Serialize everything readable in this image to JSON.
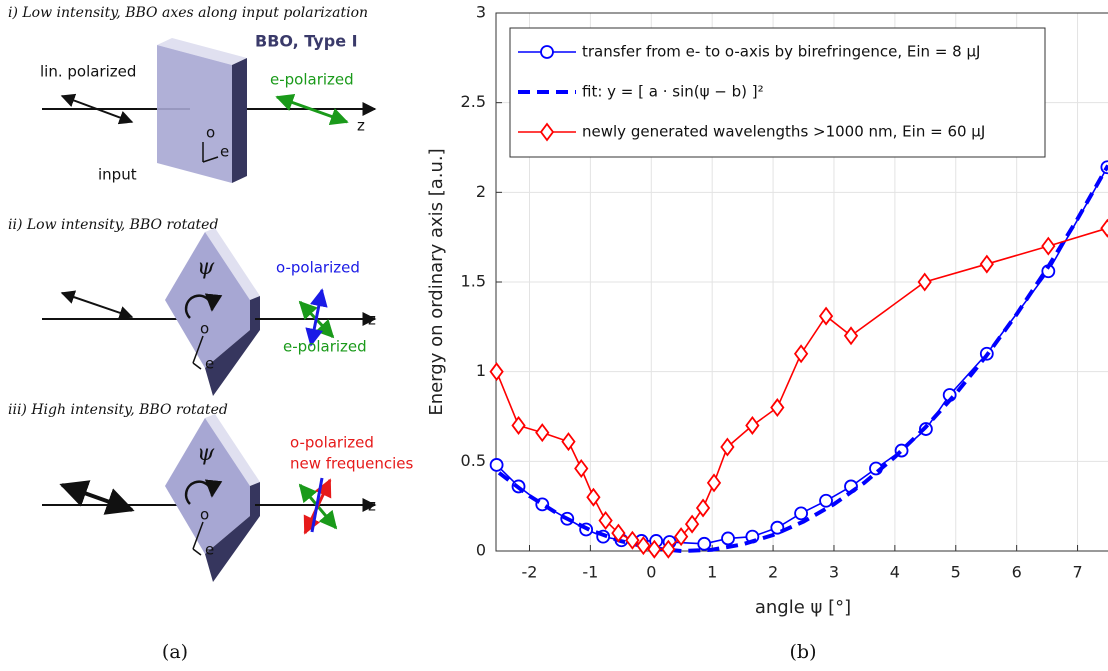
{
  "figure_a": {
    "caption": "(a)",
    "panels": [
      {
        "title": "i) Low intensity, BBO axes along input polarization",
        "crystal": "BBO, Type I",
        "input_polarization": "lin. polarized",
        "output_polarization": "e-polarized",
        "z_axis": "z",
        "o_axis": "o",
        "e_axis": "e",
        "input": "input"
      },
      {
        "title": "ii) Low intensity, BBO rotated",
        "angle": "ψ",
        "output_o": "o-polarized",
        "output_e": "e-polarized",
        "z_axis": "z",
        "o_axis": "o",
        "e_axis": "e"
      },
      {
        "title": "iii) High intensity, BBO rotated",
        "angle": "ψ",
        "output_o": "o-polarized",
        "output_new": "new frequencies",
        "z_axis": "z",
        "o_axis": "o",
        "e_axis": "e"
      }
    ]
  },
  "chart_data": {
    "type": "line",
    "caption": "(b)",
    "xlabel": "angle ψ [°]",
    "ylabel": "Energy on ordinary axis [a.u.]",
    "xlim": [
      -2.55,
      7.5
    ],
    "ylim": [
      0,
      3
    ],
    "xticks": [
      -2,
      -1,
      0,
      1,
      2,
      3,
      4,
      5,
      6,
      7
    ],
    "yticks": [
      0,
      0.5,
      1,
      1.5,
      2,
      2.5,
      3
    ],
    "grid": true,
    "legend": "upper left",
    "series": [
      {
        "name": "transfer from e- to o-axis by birefringence, Ein = 8 µJ",
        "color": "#0000ff",
        "marker": "circle",
        "line_style": "solid",
        "x": [
          -2.54,
          -2.18,
          -1.79,
          -1.38,
          -1.07,
          -0.79,
          -0.49,
          -0.16,
          0.08,
          0.3,
          0.87,
          1.26,
          1.66,
          2.07,
          2.46,
          2.87,
          3.28,
          3.69,
          4.11,
          4.51,
          4.9,
          5.51,
          6.52,
          7.49
        ],
        "values": [
          0.48,
          0.36,
          0.26,
          0.18,
          0.12,
          0.08,
          0.06,
          0.056,
          0.056,
          0.05,
          0.04,
          0.07,
          0.08,
          0.13,
          0.21,
          0.28,
          0.36,
          0.46,
          0.56,
          0.68,
          0.87,
          1.1,
          1.56,
          2.14
        ]
      },
      {
        "name": "fit: y = [ a · sin(ψ − b) ]²",
        "color": "#0000ff",
        "marker": "none",
        "line_style": "dashed",
        "x": [
          -2.5,
          -2,
          -1.5,
          -1,
          -0.5,
          0,
          0.5,
          1,
          1.5,
          2,
          2.5,
          3,
          3.5,
          4,
          4.5,
          5,
          5.5,
          6,
          6.5,
          7,
          7.5
        ],
        "values": [
          0.436,
          0.307,
          0.2,
          0.116,
          0.055,
          0.016,
          0.0,
          0.007,
          0.037,
          0.089,
          0.164,
          0.261,
          0.381,
          0.524,
          0.689,
          0.877,
          1.087,
          1.32,
          1.575,
          1.852,
          2.15
        ]
      },
      {
        "name": "newly generated wavelengths >1000 nm, Ein = 60 µJ",
        "color": "#ff0000",
        "marker": "diamond",
        "line_style": "solid",
        "x": [
          -2.54,
          -2.18,
          -1.79,
          -1.36,
          -1.15,
          -0.95,
          -0.75,
          -0.54,
          -0.31,
          -0.13,
          0.05,
          0.28,
          0.49,
          0.67,
          0.85,
          1.03,
          1.25,
          1.66,
          2.07,
          2.46,
          2.87,
          3.28,
          4.49,
          5.51,
          6.52,
          7.49
        ],
        "values": [
          1.0,
          0.7,
          0.66,
          0.61,
          0.46,
          0.3,
          0.17,
          0.1,
          0.06,
          0.03,
          0.01,
          0.01,
          0.08,
          0.15,
          0.24,
          0.38,
          0.58,
          0.7,
          0.8,
          1.1,
          1.31,
          1.2,
          1.5,
          1.6,
          1.7,
          1.8
        ]
      }
    ]
  }
}
